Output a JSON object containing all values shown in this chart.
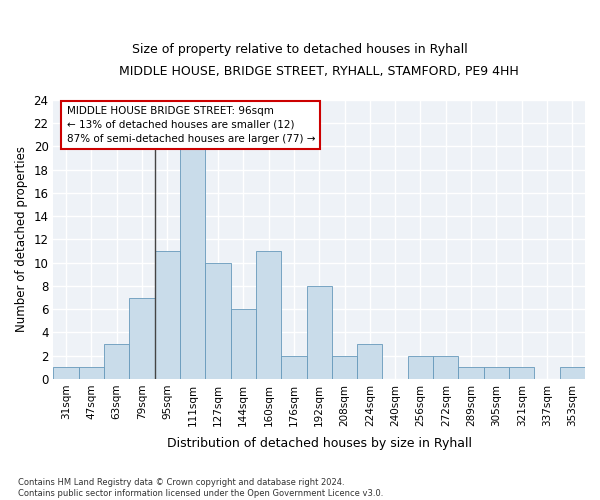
{
  "title": "MIDDLE HOUSE, BRIDGE STREET, RYHALL, STAMFORD, PE9 4HH",
  "subtitle": "Size of property relative to detached houses in Ryhall",
  "xlabel": "Distribution of detached houses by size in Ryhall",
  "ylabel": "Number of detached properties",
  "bar_labels": [
    "31sqm",
    "47sqm",
    "63sqm",
    "79sqm",
    "95sqm",
    "111sqm",
    "127sqm",
    "144sqm",
    "160sqm",
    "176sqm",
    "192sqm",
    "208sqm",
    "224sqm",
    "240sqm",
    "256sqm",
    "272sqm",
    "289sqm",
    "305sqm",
    "321sqm",
    "337sqm",
    "353sqm"
  ],
  "bar_values": [
    1,
    1,
    3,
    7,
    11,
    20,
    10,
    6,
    11,
    2,
    8,
    2,
    3,
    0,
    2,
    2,
    1,
    1,
    1,
    0,
    1
  ],
  "bar_color": "#c9dcea",
  "bar_edge_color": "#6699bb",
  "highlight_index": 4,
  "highlight_line_color": "#444444",
  "ylim": [
    0,
    24
  ],
  "yticks": [
    0,
    2,
    4,
    6,
    8,
    10,
    12,
    14,
    16,
    18,
    20,
    22,
    24
  ],
  "annotation_text": "MIDDLE HOUSE BRIDGE STREET: 96sqm\n← 13% of detached houses are smaller (12)\n87% of semi-detached houses are larger (77) →",
  "annotation_box_color": "#ffffff",
  "annotation_box_edge_color": "#cc0000",
  "bg_color": "#eef2f7",
  "footnote": "Contains HM Land Registry data © Crown copyright and database right 2024.\nContains public sector information licensed under the Open Government Licence v3.0."
}
